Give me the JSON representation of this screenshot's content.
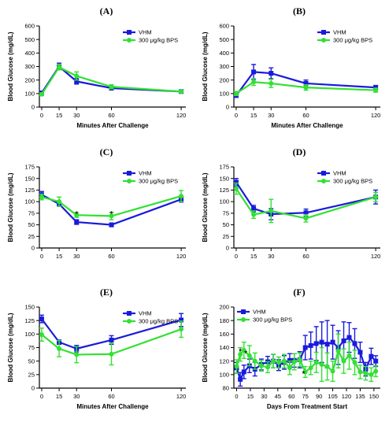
{
  "colors": {
    "vhm": "#1a1adb",
    "bps": "#33e033"
  },
  "chart_data": [
    {
      "panel": "(A)",
      "type": "line",
      "xlabel": "Minutes After Challenge",
      "ylabel": "Blood Glucose (mg/dL)",
      "xlim": [
        -2,
        124
      ],
      "ylim": [
        0,
        600
      ],
      "xticks": [
        0,
        15,
        30,
        60,
        120
      ],
      "yticks": [
        0,
        100,
        200,
        300,
        400,
        500,
        600
      ],
      "legend": "top-right",
      "stars": [],
      "series": [
        {
          "name": "VHM",
          "x": [
            0,
            15,
            30,
            60,
            120
          ],
          "y": [
            105,
            300,
            190,
            140,
            115
          ],
          "err": [
            12,
            25,
            20,
            12,
            8
          ]
        },
        {
          "name": "300 μg/kg BPS",
          "x": [
            0,
            15,
            30,
            60,
            120
          ],
          "y": [
            95,
            295,
            230,
            150,
            115
          ],
          "err": [
            10,
            20,
            30,
            15,
            10
          ]
        }
      ]
    },
    {
      "panel": "(B)",
      "type": "line",
      "xlabel": "Minutes After Challenge",
      "ylabel": "Blood Glucose (mg/dL)",
      "xlim": [
        -2,
        124
      ],
      "ylim": [
        0,
        600
      ],
      "xticks": [
        0,
        15,
        30,
        60,
        120
      ],
      "yticks": [
        0,
        100,
        200,
        300,
        400,
        500,
        600
      ],
      "legend": "top-right",
      "stars": [],
      "series": [
        {
          "name": "VHM",
          "x": [
            0,
            15,
            30,
            60,
            120
          ],
          "y": [
            85,
            260,
            250,
            175,
            145
          ],
          "err": [
            12,
            55,
            40,
            25,
            15
          ]
        },
        {
          "name": "300 μg/kg BPS",
          "x": [
            0,
            15,
            30,
            60,
            120
          ],
          "y": [
            100,
            185,
            175,
            145,
            125
          ],
          "err": [
            15,
            25,
            30,
            20,
            15
          ]
        }
      ]
    },
    {
      "panel": "(C)",
      "type": "line",
      "xlabel": "",
      "ylabel": "Blood Glucose (mg/dL)",
      "xlim": [
        -2,
        124
      ],
      "ylim": [
        0,
        175
      ],
      "xticks": [
        0,
        15,
        30,
        60,
        120
      ],
      "yticks": [
        0,
        25,
        50,
        75,
        100,
        125,
        150,
        175
      ],
      "legend": "top-right",
      "stars": [
        {
          "x": 30,
          "y": 76,
          "text": "*"
        },
        {
          "x": 60,
          "y": 76,
          "text": "*"
        }
      ],
      "series": [
        {
          "name": "VHM",
          "x": [
            0,
            15,
            30,
            60,
            120
          ],
          "y": [
            115,
            95,
            56,
            50,
            105
          ],
          "err": [
            7,
            5,
            5,
            4,
            6
          ]
        },
        {
          "name": "300 μg/kg BPS",
          "x": [
            0,
            15,
            30,
            60,
            120
          ],
          "y": [
            110,
            100,
            71,
            69,
            112
          ],
          "err": [
            6,
            10,
            5,
            8,
            12
          ]
        }
      ]
    },
    {
      "panel": "(D)",
      "type": "line",
      "xlabel": "",
      "ylabel": "Blood Glucose (mg/dL)",
      "xlim": [
        -2,
        124
      ],
      "ylim": [
        0,
        175
      ],
      "xticks": [
        0,
        15,
        30,
        60,
        120
      ],
      "yticks": [
        0,
        25,
        50,
        75,
        100,
        125,
        150,
        175
      ],
      "legend": "top-right",
      "stars": [],
      "series": [
        {
          "name": "VHM",
          "x": [
            0,
            15,
            30,
            60,
            120
          ],
          "y": [
            142,
            85,
            73,
            76,
            110
          ],
          "err": [
            8,
            7,
            12,
            8,
            15
          ]
        },
        {
          "name": "300 μg/kg BPS",
          "x": [
            0,
            15,
            30,
            60,
            120
          ],
          "y": [
            128,
            72,
            80,
            64,
            110
          ],
          "err": [
            12,
            8,
            25,
            8,
            10
          ]
        }
      ]
    },
    {
      "panel": "(E)",
      "type": "line",
      "xlabel": "Minutes After Challenge",
      "ylabel": "Blood Glucose (mg/dL)",
      "xlim": [
        -2,
        124
      ],
      "ylim": [
        0,
        150
      ],
      "xticks": [
        0,
        15,
        30,
        60,
        120
      ],
      "yticks": [
        0,
        25,
        50,
        75,
        100,
        125,
        150
      ],
      "legend": "top-right",
      "stars": [],
      "series": [
        {
          "name": "VHM",
          "x": [
            0,
            15,
            30,
            60,
            120
          ],
          "y": [
            128,
            85,
            73,
            89,
            126
          ],
          "err": [
            7,
            4,
            6,
            8,
            12
          ]
        },
        {
          "name": "300 μg/kg BPS",
          "x": [
            0,
            15,
            30,
            60,
            120
          ],
          "y": [
            99,
            73,
            62,
            63,
            109
          ],
          "err": [
            12,
            15,
            15,
            20,
            15
          ]
        }
      ]
    },
    {
      "panel": "(F)",
      "type": "line",
      "xlabel": "Days From Treatment Start",
      "ylabel": "Blood Glucose (mg/dL)",
      "xlim": [
        -3,
        157
      ],
      "ylim": [
        80,
        200
      ],
      "xticks": [
        0,
        15,
        30,
        45,
        60,
        75,
        90,
        105,
        120,
        135,
        150
      ],
      "yticks": [
        80,
        100,
        120,
        140,
        160,
        180,
        200
      ],
      "legend": "top-left",
      "stars": [
        {
          "x": 4,
          "y": 136,
          "text": "*"
        },
        {
          "x": 10,
          "y": 133,
          "text": "*"
        },
        {
          "x": 73,
          "y": 103,
          "text": "*"
        }
      ],
      "series": [
        {
          "name": "VHM",
          "x": [
            0,
            4,
            8,
            14,
            20,
            27,
            34,
            40,
            46,
            52,
            58,
            63,
            69,
            75,
            81,
            87,
            93,
            99,
            105,
            111,
            117,
            123,
            129,
            135,
            141,
            147,
            152
          ],
          "y": [
            110,
            93,
            104,
            113,
            108,
            115,
            119,
            120,
            114,
            118,
            121,
            121,
            122,
            140,
            143,
            146,
            148,
            145,
            148,
            140,
            150,
            155,
            146,
            133,
            108,
            127,
            120
          ],
          "err": [
            8,
            10,
            10,
            10,
            10,
            8,
            8,
            10,
            8,
            10,
            10,
            10,
            12,
            18,
            20,
            25,
            30,
            35,
            25,
            25,
            28,
            22,
            22,
            15,
            10,
            12,
            8
          ]
        },
        {
          "name": "300 μg/kg BPS",
          "x": [
            0,
            4,
            8,
            14,
            20,
            27,
            34,
            40,
            46,
            52,
            58,
            63,
            69,
            75,
            81,
            87,
            93,
            99,
            105,
            111,
            117,
            123,
            129,
            135,
            141,
            147,
            152
          ],
          "y": [
            112,
            130,
            136,
            128,
            120,
            113,
            111,
            120,
            118,
            120,
            110,
            119,
            122,
            104,
            110,
            118,
            115,
            112,
            105,
            135,
            120,
            128,
            118,
            104,
            102,
            100,
            105
          ],
          "err": [
            10,
            10,
            12,
            15,
            12,
            8,
            8,
            10,
            8,
            10,
            10,
            12,
            10,
            8,
            10,
            15,
            25,
            20,
            15,
            25,
            18,
            20,
            18,
            10,
            10,
            10,
            8
          ]
        }
      ]
    }
  ]
}
